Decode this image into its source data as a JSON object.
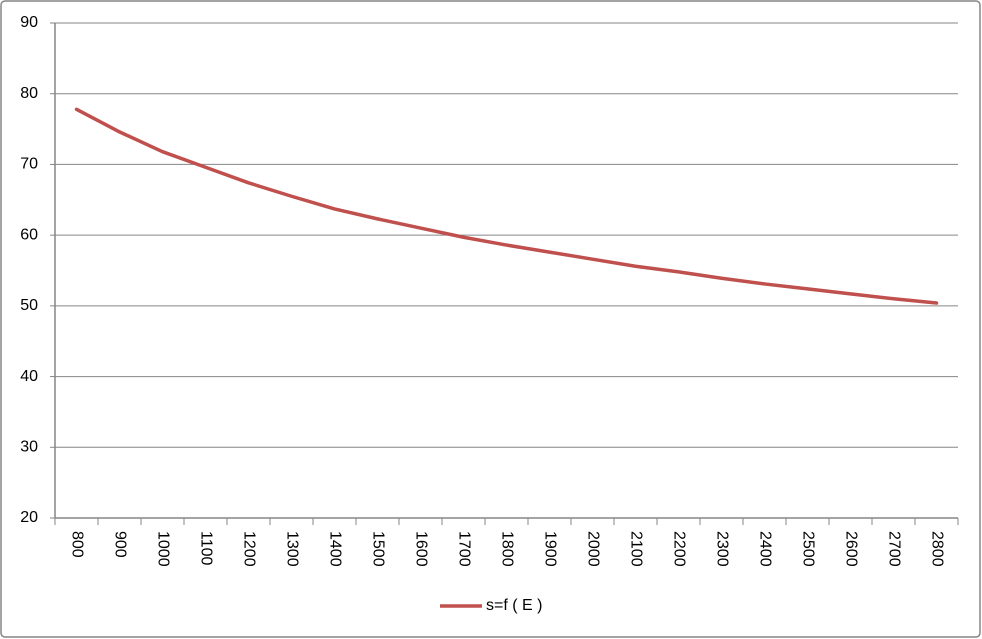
{
  "chart_data": {
    "type": "line",
    "categories": [
      "800",
      "900",
      "1000",
      "1100",
      "1200",
      "1300",
      "1400",
      "1500",
      "1600",
      "1700",
      "1800",
      "1900",
      "2000",
      "2100",
      "2200",
      "2300",
      "2400",
      "2500",
      "2600",
      "2700",
      "2800"
    ],
    "series": [
      {
        "name": "s=f ( E )",
        "color": "#c0504d",
        "values": [
          77.8,
          74.6,
          71.8,
          69.6,
          67.4,
          65.5,
          63.7,
          62.3,
          61.0,
          59.7,
          58.6,
          57.6,
          56.6,
          55.6,
          54.8,
          53.9,
          53.1,
          52.4,
          51.7,
          51.0,
          50.4
        ]
      }
    ],
    "ylim": [
      20,
      90
    ],
    "yticks": [
      20,
      30,
      40,
      50,
      60,
      70,
      80,
      90
    ],
    "grid": true,
    "legend": "bottom"
  }
}
